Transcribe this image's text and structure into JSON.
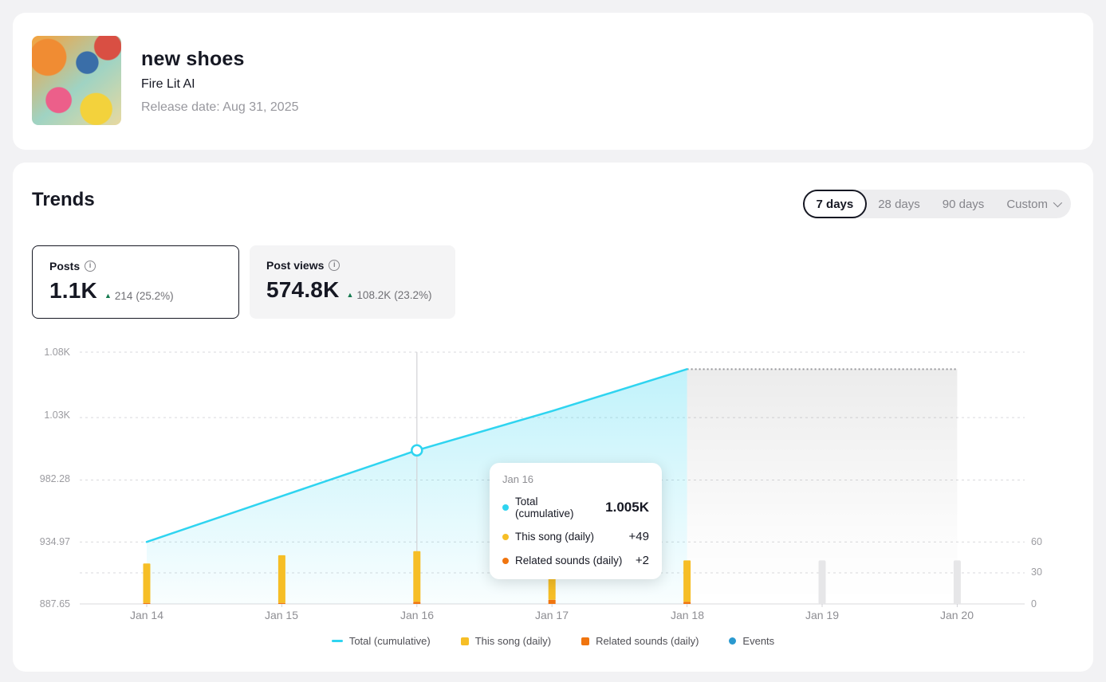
{
  "song": {
    "title": "new shoes",
    "artist": "Fire Lit AI",
    "release_date": "Release date: Aug 31, 2025"
  },
  "trends": {
    "section_title": "Trends",
    "tabs": [
      {
        "label": "7 days",
        "active": true
      },
      {
        "label": "28 days",
        "active": false
      },
      {
        "label": "90 days",
        "active": false
      },
      {
        "label": "Custom",
        "active": false,
        "chevron": true
      }
    ],
    "stats": [
      {
        "label": "Posts",
        "value": "1.1K",
        "delta": "214",
        "delta_pct": "(25.2%)",
        "direction": "up",
        "selected": true
      },
      {
        "label": "Post views",
        "value": "574.8K",
        "delta": "108.2K",
        "delta_pct": "(23.2%)",
        "direction": "up",
        "selected": false
      }
    ]
  },
  "chart_data": {
    "type": "composite",
    "x_labels": [
      "Jan 14",
      "Jan 15",
      "Jan 16",
      "Jan 17",
      "Jan 18",
      "Jan 19",
      "Jan 20"
    ],
    "y_axis_left": {
      "labels": [
        "1.08K",
        "1.03K",
        "982.28",
        "934.97",
        "887.65"
      ],
      "values": [
        1080,
        1030,
        982.28,
        934.97,
        887.65
      ]
    },
    "y_axis_right": {
      "labels": [
        "60",
        "30",
        "0"
      ],
      "values": [
        60,
        30,
        0
      ]
    },
    "series": [
      {
        "name": "Total (cumulative)",
        "type": "area-line",
        "color": "#2fd4f0",
        "values": [
          935,
          970,
          1005,
          1035,
          1067,
          null,
          null
        ]
      },
      {
        "name": "This song (daily)",
        "type": "bar",
        "color": "#f6be26",
        "values": [
          38,
          46,
          49,
          37,
          40,
          null,
          null
        ]
      },
      {
        "name": "Related sounds (daily)",
        "type": "bar",
        "color": "#f0750f",
        "values": [
          1,
          1,
          2,
          4,
          2,
          null,
          null
        ]
      },
      {
        "name": "Events",
        "type": "point",
        "color": "#2a99cf",
        "values": [
          null,
          null,
          null,
          null,
          null,
          null,
          null
        ]
      }
    ],
    "placeholder_bars": {
      "color": "#e6e6e8",
      "values": [
        null,
        null,
        null,
        null,
        null,
        42,
        42
      ]
    },
    "projection_band": {
      "start_index": 4,
      "end_index": 6,
      "level": 1067
    },
    "hover_index": 2,
    "grid": "dashed",
    "legend_position": "bottom"
  },
  "tooltip": {
    "date": "Jan 16",
    "rows": [
      {
        "label": "Total (cumulative)",
        "value": "1.005K",
        "color": "#2fd4f0"
      },
      {
        "label": "This song (daily)",
        "value": "+49",
        "color": "#f6be26"
      },
      {
        "label": "Related sounds (daily)",
        "value": "+2",
        "color": "#f0750f"
      }
    ]
  },
  "legend": [
    {
      "label": "Total (cumulative)",
      "swatch": "dash",
      "color": "#2fd4f0"
    },
    {
      "label": "This song (daily)",
      "swatch": "square",
      "color": "#f6be26"
    },
    {
      "label": "Related sounds (daily)",
      "swatch": "square",
      "color": "#f0750f"
    },
    {
      "label": "Events",
      "swatch": "dot",
      "color": "#2a99cf"
    }
  ],
  "colors": {
    "accent_cyan": "#2fd4f0",
    "bar_yellow": "#f6be26",
    "bar_orange": "#f0750f",
    "events_blue": "#2a99cf",
    "positive_green": "#157a4f",
    "placeholder_gray": "#e6e6e8",
    "page_background": "#f2f2f4"
  }
}
